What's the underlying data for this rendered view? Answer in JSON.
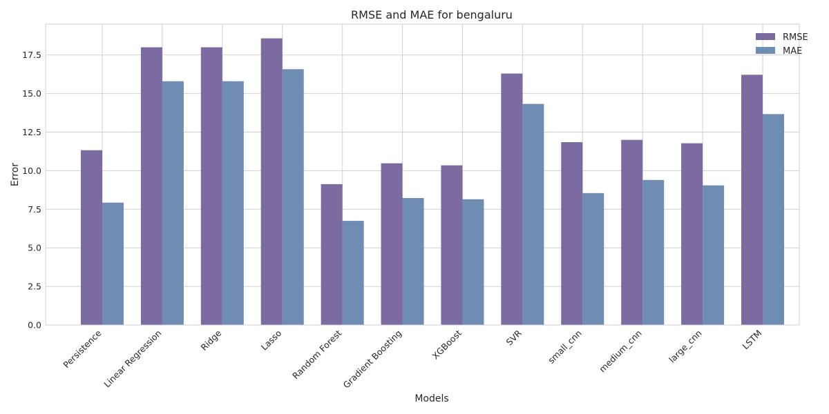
{
  "chart_data": {
    "type": "bar",
    "title": "RMSE and MAE for bengaluru",
    "xlabel": "Models",
    "ylabel": "Error",
    "categories": [
      "Persistence",
      "Linear Regression",
      "Ridge",
      "Lasso",
      "Random Forest",
      "Gradient Boosting",
      "XGBoost",
      "SVR",
      "small_cnn",
      "medium_cnn",
      "large_cnn",
      "LSTM"
    ],
    "series": [
      {
        "name": "RMSE",
        "color": "#7b6ba1",
        "values": [
          11.33,
          18.0,
          18.0,
          18.58,
          9.13,
          10.48,
          10.35,
          16.3,
          11.85,
          12.0,
          11.78,
          16.22
        ]
      },
      {
        "name": "MAE",
        "color": "#6f8db2",
        "values": [
          7.93,
          15.8,
          15.8,
          16.58,
          6.75,
          8.23,
          8.15,
          14.33,
          8.55,
          9.4,
          9.05,
          13.67
        ]
      }
    ],
    "ylim": [
      0,
      19.5
    ],
    "yticks": [
      "0.0",
      "2.5",
      "5.0",
      "7.5",
      "10.0",
      "12.5",
      "15.0",
      "17.5"
    ],
    "grid": true,
    "legend": "top-right"
  }
}
